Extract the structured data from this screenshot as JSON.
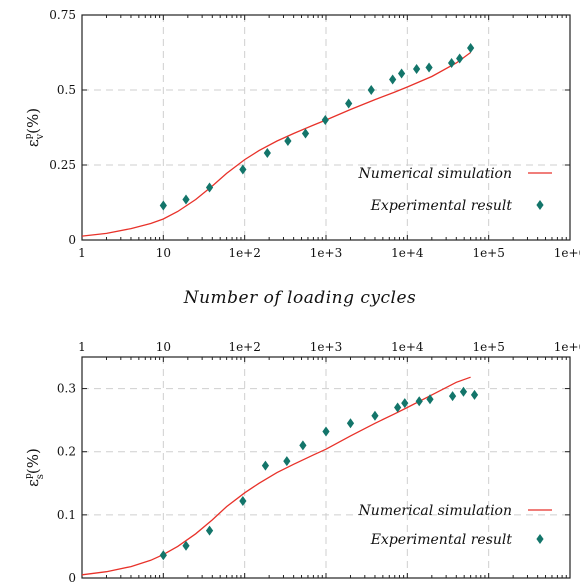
{
  "chart_data": [
    {
      "type": "line",
      "x_scale": "log",
      "xlim": [
        1,
        1000000
      ],
      "ylim": [
        0,
        0.75
      ],
      "x_tick_values": [
        1,
        10,
        100,
        1000,
        10000,
        100000,
        1000000
      ],
      "x_tick_labels": [
        "1",
        "10",
        "1e+2",
        "1e+3",
        "1e+4",
        "1e+5",
        "1e+6"
      ],
      "y_tick_values": [
        0,
        0.25,
        0.5,
        0.75
      ],
      "y_tick_labels": [
        "0",
        "0.25",
        "0.5",
        "0.75"
      ],
      "ylabel_symbol": "ε",
      "ylabel_superscript": "p",
      "ylabel_subscript": "v",
      "ylabel_unit": "(%)",
      "xlabel": "Number of loading cycles",
      "grid": true,
      "legend_position": "bottom-right",
      "series": [
        {
          "name": "Numerical simulation",
          "kind": "line",
          "color": "#e8322a",
          "x": [
            1,
            2,
            4,
            7,
            10,
            15,
            25,
            40,
            60,
            100,
            150,
            250,
            400,
            700,
            1000,
            2000,
            4000,
            7000,
            10000,
            20000,
            40000,
            60000
          ],
          "y": [
            0.013,
            0.022,
            0.038,
            0.055,
            0.07,
            0.095,
            0.135,
            0.18,
            0.222,
            0.268,
            0.298,
            0.33,
            0.355,
            0.383,
            0.4,
            0.435,
            0.468,
            0.493,
            0.51,
            0.545,
            0.59,
            0.625
          ]
        },
        {
          "name": "Experimental result",
          "kind": "scatter",
          "color": "#13756a",
          "x": [
            10,
            19,
            37,
            95,
            190,
            340,
            560,
            980,
            1900,
            3600,
            6600,
            8500,
            13000,
            18500,
            35000,
            44000,
            60000
          ],
          "y": [
            0.115,
            0.135,
            0.175,
            0.235,
            0.29,
            0.33,
            0.355,
            0.4,
            0.455,
            0.5,
            0.535,
            0.555,
            0.57,
            0.575,
            0.59,
            0.605,
            0.64
          ]
        }
      ]
    },
    {
      "type": "line",
      "x_scale": "log",
      "xlim": [
        1,
        1000000
      ],
      "ylim": [
        0,
        0.35
      ],
      "x_tick_values": [
        1,
        10,
        100,
        1000,
        10000,
        100000,
        1000000
      ],
      "x_tick_labels": [
        "1",
        "10",
        "1e+2",
        "1e+3",
        "1e+4",
        "1e+5",
        "1e+6"
      ],
      "y_tick_values": [
        0,
        0.1,
        0.2,
        0.3
      ],
      "y_tick_labels": [
        "0",
        "0.1",
        "0.2",
        "0.3"
      ],
      "ylabel_symbol": "ε",
      "ylabel_superscript": "p",
      "ylabel_subscript": "s",
      "ylabel_unit": "(%)",
      "grid": true,
      "legend_position": "bottom-right",
      "series": [
        {
          "name": "Numerical simulation",
          "kind": "line",
          "color": "#e8322a",
          "x": [
            1,
            2,
            4,
            7,
            10,
            15,
            25,
            40,
            60,
            100,
            150,
            250,
            400,
            700,
            1000,
            2000,
            4000,
            7000,
            10000,
            20000,
            40000,
            60000
          ],
          "y": [
            0.005,
            0.01,
            0.018,
            0.028,
            0.037,
            0.05,
            0.07,
            0.092,
            0.113,
            0.135,
            0.15,
            0.167,
            0.18,
            0.195,
            0.204,
            0.225,
            0.245,
            0.26,
            0.27,
            0.29,
            0.31,
            0.318
          ]
        },
        {
          "name": "Experimental result",
          "kind": "scatter",
          "color": "#13756a",
          "x": [
            10,
            19,
            37,
            95,
            180,
            330,
            520,
            1000,
            2000,
            4000,
            7600,
            9300,
            14000,
            19000,
            36000,
            49000,
            67000
          ],
          "y": [
            0.036,
            0.051,
            0.075,
            0.122,
            0.178,
            0.185,
            0.21,
            0.232,
            0.245,
            0.257,
            0.27,
            0.277,
            0.28,
            0.283,
            0.288,
            0.295,
            0.29
          ]
        }
      ]
    }
  ]
}
